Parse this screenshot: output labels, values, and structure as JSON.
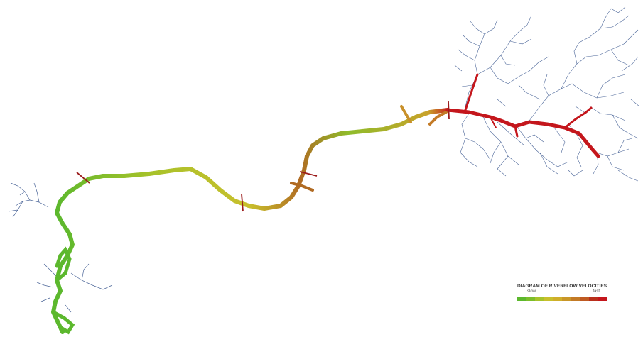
{
  "legend": {
    "title": "DIAGRAM OF RIVERFLOW VELOCITIES",
    "slow_label": "slow",
    "fast_label": "fast",
    "scale_colors": [
      "#5cb82d",
      "#7cbd2a",
      "#a7c22a",
      "#c8bf2c",
      "#cfae2a",
      "#c99628",
      "#c37a26",
      "#bf5a22",
      "#b9301c",
      "#c4161c"
    ]
  },
  "colors": {
    "tributary": "#2b4a86",
    "marker": "#9b1b1b"
  }
}
